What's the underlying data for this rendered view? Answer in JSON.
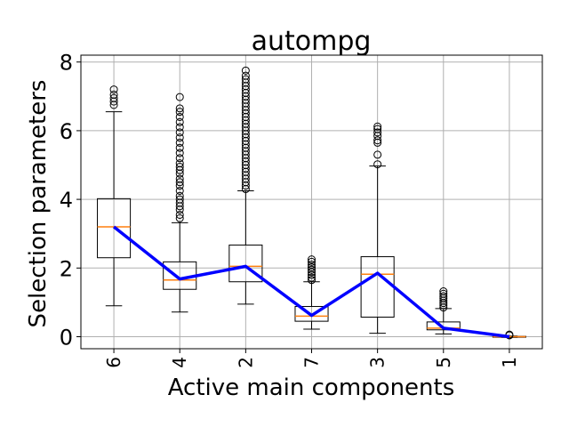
{
  "chart_data": {
    "type": "box",
    "title": "autompg",
    "xlabel": "Active main components",
    "ylabel": "Selection parameters",
    "categories": [
      "6",
      "4",
      "2",
      "7",
      "3",
      "5",
      "1"
    ],
    "ylim": [
      -0.35,
      8.2
    ],
    "yticks": [
      0,
      2,
      4,
      6,
      8
    ],
    "grid": true,
    "boxes": [
      {
        "label": "6",
        "whisker_low": 0.9,
        "q1": 2.3,
        "median": 3.2,
        "q3": 4.02,
        "whisker_high": 6.55,
        "outliers": [
          6.75,
          6.85,
          6.95,
          7.05,
          7.2
        ]
      },
      {
        "label": "4",
        "whisker_low": 0.72,
        "q1": 1.38,
        "median": 1.65,
        "q3": 2.18,
        "whisker_high": 3.32,
        "outliers": [
          3.45,
          3.55,
          3.7,
          3.8,
          3.9,
          4.0,
          4.1,
          4.25,
          4.4,
          4.5,
          4.6,
          4.75,
          4.85,
          4.95,
          5.05,
          5.2,
          5.35,
          5.5,
          5.65,
          5.8,
          5.95,
          6.1,
          6.25,
          6.4,
          6.55,
          6.65,
          6.98
        ]
      },
      {
        "label": "2",
        "whisker_low": 0.95,
        "q1": 1.6,
        "median": 2.05,
        "q3": 2.67,
        "whisker_high": 4.25,
        "outliers": [
          4.3,
          4.4,
          4.5,
          4.6,
          4.7,
          4.8,
          4.9,
          5.0,
          5.1,
          5.2,
          5.3,
          5.4,
          5.5,
          5.6,
          5.7,
          5.8,
          5.9,
          6.0,
          6.1,
          6.2,
          6.3,
          6.4,
          6.5,
          6.6,
          6.7,
          6.8,
          6.9,
          7.0,
          7.1,
          7.2,
          7.3,
          7.4,
          7.5,
          7.6,
          7.75
        ]
      },
      {
        "label": "7",
        "whisker_low": 0.22,
        "q1": 0.45,
        "median": 0.6,
        "q3": 0.88,
        "whisker_high": 1.6,
        "outliers": [
          1.65,
          1.72,
          1.8,
          1.88,
          1.95,
          2.02,
          2.1,
          2.18,
          2.25
        ]
      },
      {
        "label": "3",
        "whisker_low": 0.1,
        "q1": 0.57,
        "median": 1.82,
        "q3": 2.33,
        "whisker_high": 4.97,
        "outliers": [
          5.02,
          5.3,
          5.65,
          5.72,
          5.85,
          5.95,
          6.05,
          6.12
        ]
      },
      {
        "label": "5",
        "whisker_low": 0.08,
        "q1": 0.2,
        "median": 0.25,
        "q3": 0.43,
        "whisker_high": 0.82,
        "outliers": [
          0.85,
          0.92,
          0.98,
          1.05,
          1.12,
          1.18,
          1.25,
          1.32
        ]
      },
      {
        "label": "1",
        "whisker_low": -0.02,
        "q1": 0.0,
        "median": 0.0,
        "q3": 0.01,
        "whisker_high": 0.02,
        "outliers": [
          0.04,
          0.06
        ]
      }
    ],
    "line": {
      "color": "#0000ff",
      "values": [
        3.2,
        1.68,
        2.05,
        0.62,
        1.85,
        0.25,
        0.0
      ]
    },
    "colors": {
      "box": "#000000",
      "median": "#ff7f0e",
      "grid": "#b0b0b0"
    }
  }
}
